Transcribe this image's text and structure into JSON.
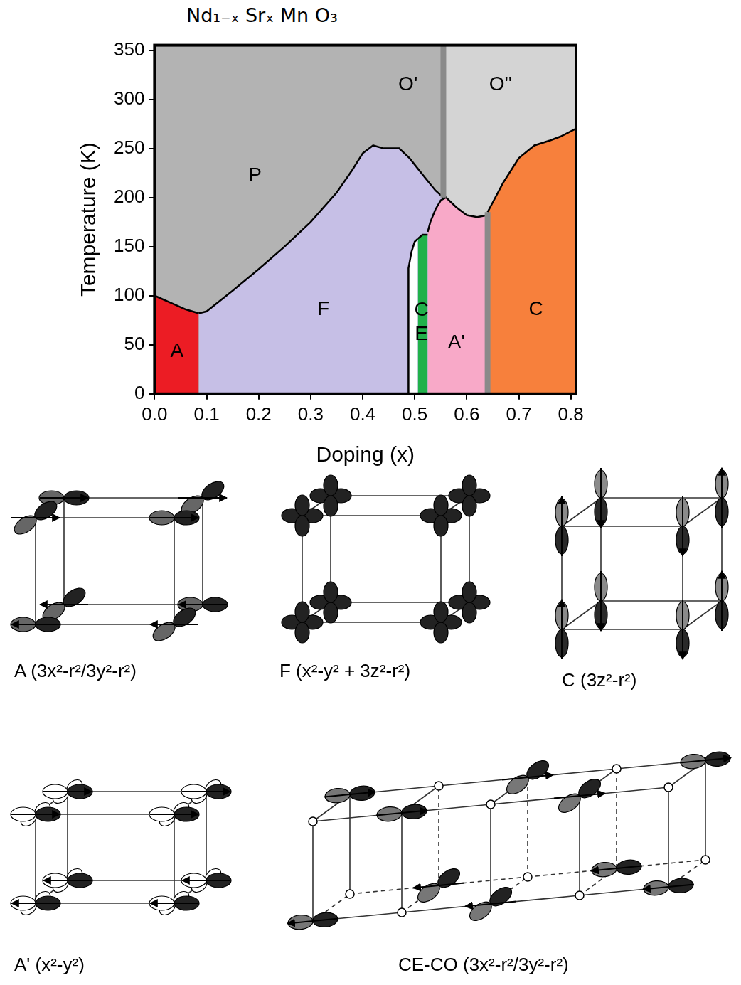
{
  "chart_data": {
    "type": "area",
    "title": "Nd₁₋ₓ Srₓ Mn O₃",
    "x_label": "Doping (x)",
    "y_label": "Temperature (K)",
    "xlim": [
      0,
      0.81
    ],
    "ylim": [
      0,
      355
    ],
    "xticks": [
      {
        "value": 0,
        "label": "0.0"
      },
      0.1,
      0.2,
      0.3,
      0.4,
      0.5,
      0.6,
      0.7,
      0.8
    ],
    "yticks": [
      0,
      50,
      100,
      150,
      200,
      250,
      300,
      350
    ],
    "grid": false,
    "series": [
      {
        "name": "O'",
        "type": "area",
        "color": "#b3b3b3",
        "line_style": "none",
        "x": [
          0,
          0.555
        ],
        "values": [
          355,
          355
        ],
        "label_at": [
          0.487,
          315
        ]
      },
      {
        "name": "O''",
        "type": "area",
        "color": "#d4d4d4",
        "line_style": "none",
        "x": [
          0.555,
          0.81
        ],
        "values": [
          355,
          355
        ],
        "label_at": [
          0.665,
          315
        ]
      },
      {
        "name": "A",
        "type": "area",
        "color": "#ec1c24",
        "line_style": "solid",
        "x": [
          0,
          0.03,
          0.06,
          0.085
        ],
        "values": [
          100,
          93,
          86,
          82
        ],
        "label_at": [
          0.043,
          43
        ]
      },
      {
        "name": "F",
        "type": "area",
        "color": "#c6bfe6",
        "line_style": "solid",
        "x": [
          0.085,
          0.1,
          0.15,
          0.2,
          0.25,
          0.3,
          0.35,
          0.38,
          0.4,
          0.42,
          0.44,
          0.47,
          0.49,
          0.52,
          0.54,
          0.555
        ],
        "values": [
          82,
          84,
          105,
          127,
          150,
          175,
          205,
          228,
          245,
          253,
          250,
          250,
          240,
          220,
          207,
          200
        ],
        "label_at": [
          0.324,
          86
        ]
      },
      {
        "name": null,
        "type": "area",
        "color": "#ffffff",
        "line_style": "solid",
        "x": [
          0.488,
          0.488,
          0.494,
          0.5,
          0.506
        ],
        "values": [
          0,
          128,
          145,
          155,
          158
        ]
      },
      {
        "name": "CE",
        "type": "area",
        "color": "#21b14b",
        "line_style": "solid",
        "x": [
          0.506,
          0.515,
          0.525
        ],
        "values": [
          158,
          162,
          162
        ],
        "label_at": [
          0.513,
          73
        ]
      },
      {
        "name": "A'",
        "type": "area",
        "color": "#f8a9c8",
        "line_style": "solid",
        "x": [
          0.525,
          0.53,
          0.54,
          0.55,
          0.56,
          0.58,
          0.6,
          0.62,
          0.64
        ],
        "values": [
          165,
          175,
          188,
          197,
          200,
          190,
          182,
          180,
          182
        ],
        "label_at": [
          0.58,
          52
        ]
      },
      {
        "name": "C",
        "type": "area",
        "color": "#f7803c",
        "line_style": "solid",
        "x": [
          0.64,
          0.65,
          0.67,
          0.7,
          0.73,
          0.76,
          0.78,
          0.81
        ],
        "values": [
          185,
          195,
          215,
          240,
          253,
          258,
          262,
          270
        ],
        "label_at": [
          0.733,
          86
        ]
      },
      {
        "name": null,
        "type": "line",
        "color": "#8a8a8a",
        "line_style": "solid",
        "x": [
          0.555,
          0.555
        ],
        "values": [
          200,
          355
        ]
      },
      {
        "name": null,
        "type": "line",
        "color": "#8a8a8a",
        "line_style": "solid",
        "x": [
          0.64,
          0.64
        ],
        "values": [
          0,
          185
        ]
      }
    ],
    "annotations": [
      {
        "text": "P",
        "x": 0.193,
        "y": 222
      }
    ]
  },
  "diagrams": {
    "panels": [
      {
        "caption": "A (3x²-r²/3y²-r²)"
      },
      {
        "caption": "F (x²-y² + 3z²-r²)"
      },
      {
        "caption": "C (3z²-r²)"
      },
      {
        "caption": "A' (x²-y²)"
      },
      {
        "caption": "CE-CO (3x²-r²/3y²-r²)"
      }
    ]
  }
}
